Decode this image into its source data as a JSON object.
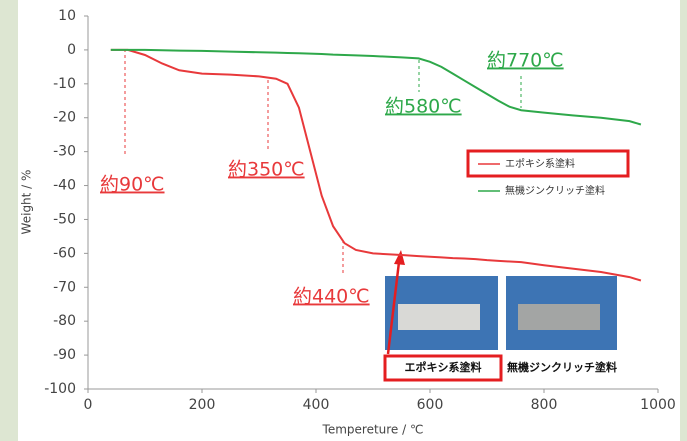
{
  "chart_data": {
    "type": "line",
    "x_label": "Tempereture / ℃",
    "y_label": "Weight / %",
    "x": [
      40,
      70,
      100,
      130,
      160,
      200,
      250,
      300,
      330,
      350,
      370,
      390,
      410,
      430,
      450,
      470,
      500,
      550,
      580,
      600,
      620,
      640,
      660,
      680,
      700,
      720,
      740,
      760,
      800,
      850,
      900,
      950,
      970
    ],
    "series": [
      {
        "name": "エポキシ系塗料",
        "color": "#e8393b",
        "values": [
          0,
          0,
          -1.5,
          -4,
          -6,
          -7,
          -7.3,
          -7.8,
          -8.5,
          -10,
          -17,
          -30,
          -43,
          -52,
          -57,
          -59,
          -60,
          -60.5,
          -60.8,
          -61,
          -61.2,
          -61.4,
          -61.5,
          -61.7,
          -62,
          -62.2,
          -62.4,
          -62.6,
          -63.5,
          -64.5,
          -65.5,
          -67,
          -68
        ]
      },
      {
        "name": "無機ジンクリッチ塗料",
        "color": "#2ea84a",
        "values": [
          0,
          0,
          0,
          -0.1,
          -0.2,
          -0.3,
          -0.5,
          -0.7,
          -0.8,
          -0.9,
          -1,
          -1.1,
          -1.2,
          -1.4,
          -1.5,
          -1.6,
          -1.8,
          -2.2,
          -2.5,
          -3.5,
          -5,
          -7,
          -9,
          -11,
          -13,
          -15,
          -16.8,
          -17.8,
          -18.5,
          -19.3,
          -20,
          -21,
          -22
        ]
      }
    ],
    "xlim": [
      0,
      1000
    ],
    "xticks": [
      0,
      200,
      400,
      600,
      800,
      1000
    ],
    "ylim": [
      -100,
      10
    ],
    "yticks": [
      10,
      0,
      -10,
      -20,
      -30,
      -40,
      -50,
      -60,
      -70,
      -80,
      -90,
      -100
    ],
    "annotations": [
      "約90℃",
      "約350℃",
      "約440℃",
      "約580℃",
      "約770℃"
    ],
    "photo_captions": [
      "エポキシ系塗料",
      "無機ジンクリッチ塗料"
    ]
  }
}
